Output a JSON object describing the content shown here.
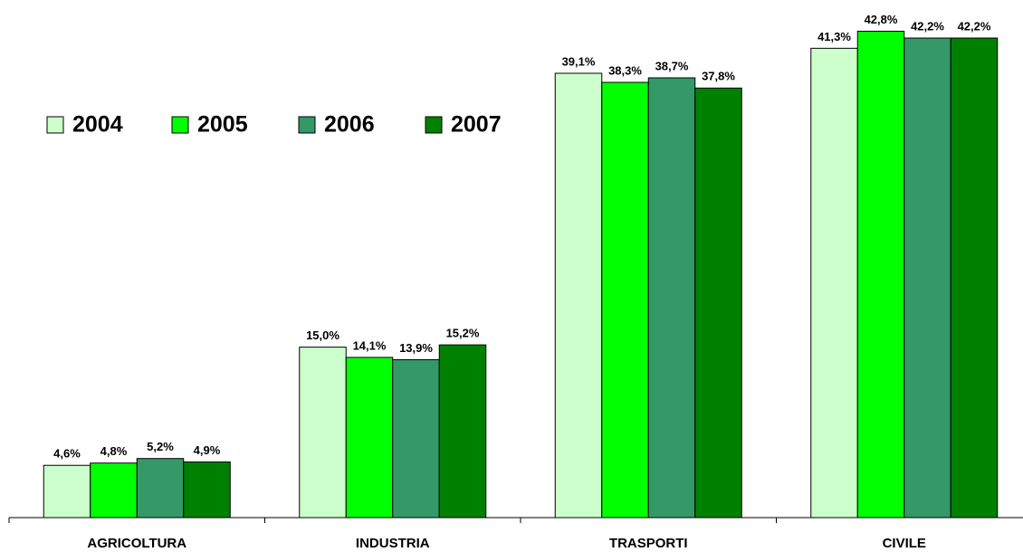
{
  "chart_data": {
    "type": "bar",
    "categories": [
      "AGRICOLTURA",
      "INDUSTRIA",
      "TRASPORTI",
      "CIVILE"
    ],
    "series": [
      {
        "name": "2004",
        "color": "#ccffcc",
        "values": [
          4.6,
          15.0,
          39.1,
          41.3
        ],
        "value_labels": [
          "4,6%",
          "15,0%",
          "39,1%",
          "41,3%"
        ]
      },
      {
        "name": "2005",
        "color": "#00ff00",
        "values": [
          4.8,
          14.1,
          38.3,
          42.8
        ],
        "value_labels": [
          "4,8%",
          "14,1%",
          "38,3%",
          "42,8%"
        ]
      },
      {
        "name": "2006",
        "color": "#339966",
        "values": [
          5.2,
          13.9,
          38.7,
          42.2
        ],
        "value_labels": [
          "5,2%",
          "13,9%",
          "38,7%",
          "42,2%"
        ]
      },
      {
        "name": "2007",
        "color": "#008000",
        "values": [
          4.9,
          15.2,
          37.8,
          42.2
        ],
        "value_labels": [
          "4,9%",
          "15,2%",
          "37,8%",
          "42,2%"
        ]
      }
    ],
    "ylim": [
      0,
      43
    ],
    "legend": "top-left",
    "grid": false
  }
}
